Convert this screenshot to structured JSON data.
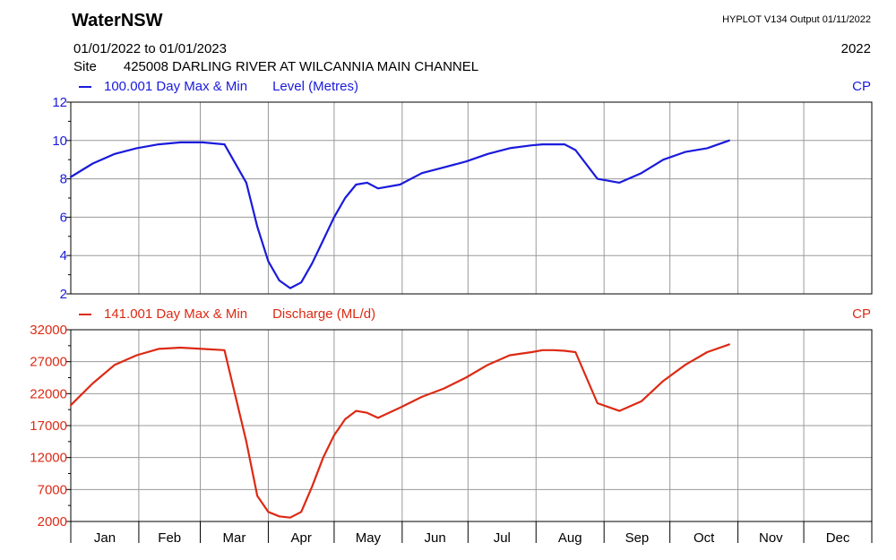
{
  "header": {
    "title": "WaterNSW",
    "output": "HYPLOT V134  Output 01/11/2022",
    "period": "01/01/2022  to  01/01/2023",
    "year": "2022",
    "site_label": "Site",
    "site_value": "425008  DARLING RIVER AT WILCANNIA MAIN CHANNEL"
  },
  "colors": {
    "level": "#1a1adc",
    "discharge": "#dc2a14",
    "grid": "#000000"
  },
  "chart_data": [
    {
      "type": "line",
      "legend_series": "100.001 Day Max & Min",
      "ylabel": "Level (Metres)",
      "corner_label": "CP",
      "ylim": [
        2,
        12
      ],
      "yticks": [
        2,
        4,
        6,
        8,
        10,
        12
      ],
      "series": [
        {
          "name": "100.001 Day Max & Min",
          "x": [
            0,
            10,
            20,
            30,
            40,
            50,
            60,
            70,
            80,
            85,
            90,
            95,
            100,
            105,
            110,
            115,
            120,
            125,
            130,
            135,
            140,
            150,
            160,
            170,
            180,
            190,
            200,
            210,
            215,
            220,
            225,
            230,
            240,
            250,
            260,
            270,
            280,
            290,
            300
          ],
          "values": [
            8.1,
            8.8,
            9.3,
            9.6,
            9.8,
            9.9,
            9.9,
            9.8,
            7.8,
            5.5,
            3.7,
            2.7,
            2.3,
            2.6,
            3.6,
            4.8,
            6.0,
            7.0,
            7.7,
            7.8,
            7.5,
            7.7,
            8.3,
            8.6,
            8.9,
            9.3,
            9.6,
            9.75,
            9.8,
            9.8,
            9.8,
            9.5,
            8.0,
            7.8,
            8.3,
            9.0,
            9.4,
            9.6,
            10.0
          ]
        }
      ],
      "x_axis_months": [
        "Jan",
        "Feb",
        "Mar",
        "Apr",
        "May",
        "Jun",
        "Jul",
        "Aug",
        "Sep",
        "Oct",
        "Nov",
        "Dec"
      ]
    },
    {
      "type": "line",
      "legend_series": "141.001 Day Max & Min",
      "ylabel": "Discharge (ML/d)",
      "corner_label": "CP",
      "ylim": [
        2000,
        32000
      ],
      "yticks": [
        2000,
        7000,
        12000,
        17000,
        22000,
        27000,
        32000
      ],
      "series": [
        {
          "name": "141.001 Day Max & Min",
          "x": [
            0,
            10,
            20,
            30,
            40,
            50,
            60,
            70,
            80,
            85,
            90,
            95,
            100,
            105,
            110,
            115,
            120,
            125,
            130,
            135,
            140,
            150,
            160,
            170,
            180,
            190,
            200,
            210,
            215,
            220,
            225,
            230,
            240,
            250,
            260,
            270,
            280,
            290,
            300
          ],
          "values": [
            20200,
            23600,
            26500,
            28000,
            29000,
            29200,
            29000,
            28800,
            14500,
            6000,
            3500,
            2800,
            2600,
            3500,
            7500,
            12000,
            15500,
            18000,
            19300,
            19000,
            18200,
            19800,
            21500,
            22800,
            24500,
            26500,
            28000,
            28500,
            28800,
            28800,
            28700,
            28500,
            20500,
            19300,
            20800,
            24000,
            26500,
            28500,
            29700
          ]
        }
      ],
      "x_axis_months": [
        "Jan",
        "Feb",
        "Mar",
        "Apr",
        "May",
        "Jun",
        "Jul",
        "Aug",
        "Sep",
        "Oct",
        "Nov",
        "Dec"
      ]
    }
  ]
}
